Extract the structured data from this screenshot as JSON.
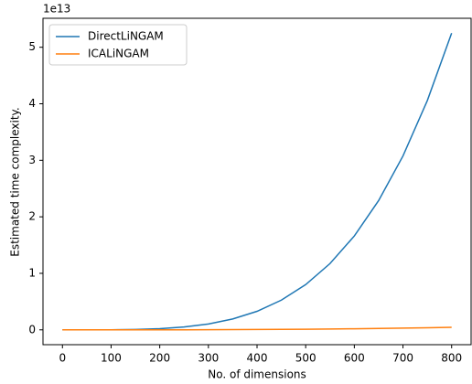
{
  "chart_data": {
    "type": "line",
    "xlabel": "No. of dimensions",
    "ylabel": "Estimated time complexity.",
    "y_offset_label": "1e13",
    "x": [
      0,
      50,
      100,
      150,
      200,
      250,
      300,
      350,
      400,
      450,
      500,
      550,
      600,
      650,
      700,
      750,
      800
    ],
    "series": [
      {
        "name": "DirectLiNGAM",
        "color": "#1f77b4",
        "values": [
          0,
          0.0001,
          0.0013,
          0.0065,
          0.0205,
          0.05,
          0.104,
          0.192,
          0.328,
          0.526,
          0.801,
          1.173,
          1.661,
          2.288,
          3.077,
          4.056,
          5.25
        ]
      },
      {
        "name": "ICALiNGAM",
        "color": "#ff7f0e",
        "values": [
          0,
          1e-05,
          0.0001,
          0.0003,
          0.0007,
          0.0014,
          0.0024,
          0.0038,
          0.0056,
          0.008,
          0.011,
          0.0146,
          0.019,
          0.0241,
          0.0301,
          0.0371,
          0.045
        ]
      }
    ],
    "xlim": [
      -40,
      840
    ],
    "xticks": [
      0,
      100,
      200,
      300,
      400,
      500,
      600,
      700,
      800
    ],
    "ylim": [
      -0.2625,
      5.5125
    ],
    "yticks": [
      0,
      1,
      2,
      3,
      4,
      5
    ],
    "legend": "upper left",
    "grid": false
  }
}
